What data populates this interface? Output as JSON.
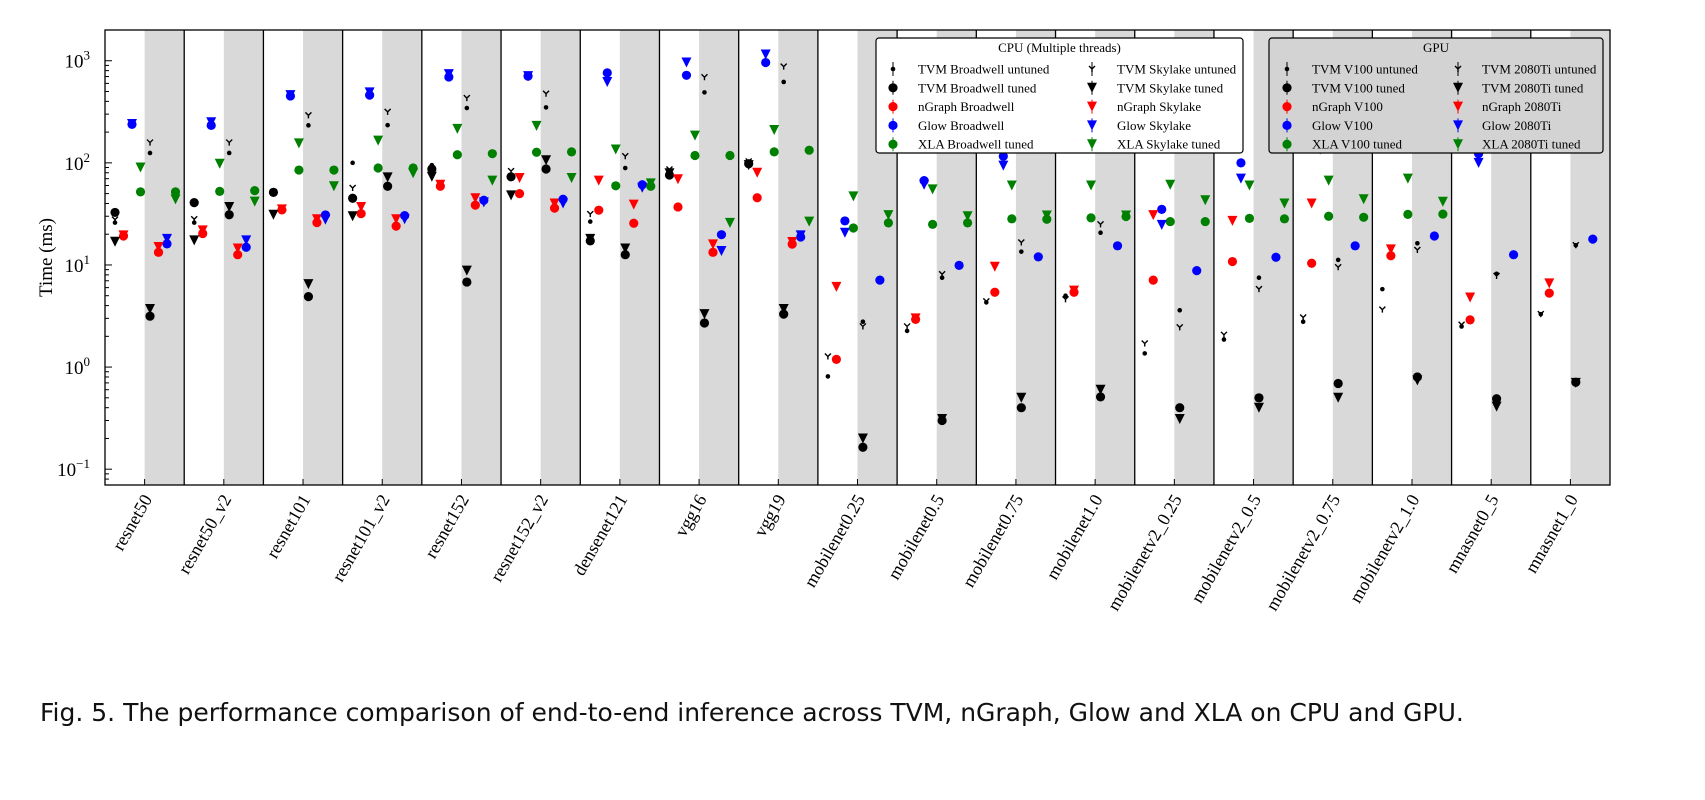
{
  "caption": "Fig. 5.  The performance comparison of end-to-end inference across TVM, nGraph, Glow and XLA on CPU and GPU.",
  "chart_data": {
    "type": "scatter",
    "ylabel": "Time (ms)",
    "yscale": "log",
    "ylim": [
      0.07,
      2000
    ],
    "yticks": [
      {
        "value": 0.1,
        "label_base": "10",
        "label_exp": "−1"
      },
      {
        "value": 1,
        "label_base": "10",
        "label_exp": "0"
      },
      {
        "value": 10,
        "label_base": "10",
        "label_exp": "1"
      },
      {
        "value": 100,
        "label_base": "10",
        "label_exp": "2"
      },
      {
        "value": 1000,
        "label_base": "10",
        "label_exp": "3"
      }
    ],
    "grid": false,
    "background_bands": {
      "cpu_half": "#ffffff",
      "gpu_half": "#d9d9d9"
    },
    "categories": [
      "resnet50",
      "resnet50_v2",
      "resnet101",
      "resnet101_v2",
      "resnet152",
      "resnet152_v2",
      "densenet121",
      "vgg16",
      "vgg19",
      "mobilenet0.25",
      "mobilenet0.5",
      "mobilenet0.75",
      "mobilenet1.0",
      "mobilenetv2_0.25",
      "mobilenetv2_0.5",
      "mobilenetv2_0.75",
      "mobilenetv2_1.0",
      "mnasnet0_5",
      "mnasnet1_0"
    ],
    "legends": [
      {
        "title": "CPU (Multiple threads)",
        "placement": "top-center",
        "background": "#ffffff"
      },
      {
        "title": "GPU",
        "placement": "top-right",
        "background": "#d3d3d3"
      }
    ],
    "series": [
      {
        "name": "TVM Broadwell untuned",
        "device": "cpu",
        "framework": "TVM",
        "marker": "small-dot",
        "color": "#000000",
        "values": [
          26,
          26,
          50,
          100,
          95,
          76,
          26.6,
          80,
          99,
          0.81,
          2.26,
          4.3,
          5.0,
          1.36,
          1.86,
          2.78,
          5.8,
          2.5,
          3.3
        ]
      },
      {
        "name": "TVM Broadwell tuned",
        "device": "cpu",
        "framework": "TVM",
        "marker": "circle",
        "color": "#000000",
        "values": [
          32.7,
          40.8,
          51.4,
          45,
          87,
          73,
          17.2,
          76,
          98,
          null,
          null,
          null,
          null,
          null,
          null,
          null,
          null,
          null,
          null
        ]
      },
      {
        "name": "nGraph Broadwell",
        "device": "cpu",
        "framework": "nGraph",
        "marker": "circle",
        "color": "#ff0000",
        "values": [
          19.2,
          20.3,
          34.6,
          31.8,
          59,
          50,
          34.4,
          37,
          45.5,
          1.19,
          2.93,
          5.4,
          5.4,
          7.1,
          10.8,
          10.4,
          12.3,
          2.9,
          5.3
        ]
      },
      {
        "name": "Glow Broadwell",
        "device": "cpu",
        "framework": "Glow",
        "marker": "circle",
        "color": "#0000ff",
        "values": [
          238,
          233,
          452,
          460,
          693,
          707,
          760,
          720,
          960,
          27,
          67,
          116,
          null,
          35,
          100,
          165,
          null,
          123,
          null
        ]
      },
      {
        "name": "XLA Broadwell tuned",
        "device": "cpu",
        "framework": "XLA",
        "marker": "circle",
        "color": "#008000",
        "values": [
          52,
          52.6,
          85,
          89,
          120,
          127,
          59.6,
          118,
          128,
          23,
          25,
          28.3,
          28.9,
          26.6,
          28.6,
          30,
          31.3,
          null,
          null
        ]
      },
      {
        "name": "TVM Skylake untuned",
        "device": "cpu",
        "framework": "TVM",
        "marker": "small-tri",
        "color": "#000000",
        "values": [
          27.8,
          28,
          52,
          56.7,
          79,
          83,
          31.5,
          86,
          103,
          1.27,
          2.5,
          4.4,
          4.6,
          1.7,
          2.07,
          3.06,
          3.65,
          2.6,
          3.3
        ]
      },
      {
        "name": "TVM Skylake tuned",
        "device": "cpu",
        "framework": "TVM",
        "marker": "triangle",
        "color": "#000000",
        "values": [
          16.9,
          17.4,
          31,
          30,
          73,
          48,
          18,
          79,
          95,
          null,
          null,
          null,
          null,
          null,
          null,
          null,
          null,
          null,
          null
        ]
      },
      {
        "name": "nGraph Skylake",
        "device": "cpu",
        "framework": "nGraph",
        "marker": "triangle",
        "color": "#ff0000",
        "values": [
          19.5,
          21.8,
          35,
          37,
          61,
          71,
          67,
          69,
          80,
          6.1,
          3.0,
          9.6,
          5.6,
          30.8,
          27,
          40,
          14.2,
          4.8,
          6.6
        ]
      },
      {
        "name": "Glow Skylake",
        "device": "cpu",
        "framework": "Glow",
        "marker": "triangle",
        "color": "#0000ff",
        "values": [
          240,
          250,
          460,
          490,
          740,
          707,
          620,
          960,
          1150,
          20.7,
          61,
          94,
          null,
          24.7,
          70,
          135,
          null,
          100,
          null
        ]
      },
      {
        "name": "XLA Skylake tuned",
        "device": "cpu",
        "framework": "XLA",
        "marker": "triangle",
        "color": "#008000",
        "values": [
          90,
          98,
          155,
          165,
          215,
          230,
          135,
          185,
          210,
          47,
          55,
          60,
          60,
          61,
          60,
          67,
          70,
          null,
          null
        ]
      },
      {
        "name": "TVM V100 untuned",
        "device": "gpu",
        "framework": "TVM",
        "marker": "small-dot",
        "color": "#000000",
        "values": [
          125,
          125,
          233,
          234,
          344,
          349,
          89,
          490,
          620,
          2.78,
          7.5,
          13.5,
          20.7,
          3.6,
          7.5,
          11.2,
          16.3,
          8.2,
          15.6
        ]
      },
      {
        "name": "TVM V100 tuned",
        "device": "gpu",
        "framework": "TVM",
        "marker": "circle",
        "color": "#000000",
        "values": [
          3.15,
          31,
          4.9,
          59,
          6.8,
          87,
          12.6,
          2.7,
          3.3,
          0.164,
          0.3,
          0.4,
          0.51,
          0.4,
          0.5,
          0.69,
          0.8,
          0.49,
          0.71
        ]
      },
      {
        "name": "nGraph V100",
        "device": "gpu",
        "framework": "nGraph",
        "marker": "circle",
        "color": "#ff0000",
        "values": [
          13.3,
          12.6,
          26,
          24,
          38.5,
          36,
          25.6,
          13.3,
          16,
          null,
          null,
          null,
          null,
          null,
          null,
          null,
          null,
          null,
          null
        ]
      },
      {
        "name": "Glow V100",
        "device": "gpu",
        "framework": "Glow",
        "marker": "circle",
        "color": "#0000ff",
        "values": [
          16.1,
          14.9,
          30.9,
          30.4,
          43,
          44,
          61,
          19.8,
          18.8,
          7.1,
          9.9,
          12.0,
          15.4,
          8.8,
          11.9,
          15.4,
          19.2,
          12.6,
          17.9
        ]
      },
      {
        "name": "XLA V100 tuned",
        "device": "gpu",
        "framework": "XLA",
        "marker": "circle",
        "color": "#008000",
        "values": [
          52,
          53.5,
          85,
          89,
          123,
          128,
          59,
          118,
          133,
          25.8,
          25.8,
          28,
          29.8,
          26.6,
          28.3,
          29.3,
          31.5,
          null,
          null
        ]
      },
      {
        "name": "TVM 2080Ti untuned",
        "device": "gpu",
        "framework": "TVM",
        "marker": "small-tri",
        "color": "#000000",
        "values": [
          158,
          158,
          292,
          316,
          430,
          475,
          116,
          690,
          875,
          2.5,
          8.1,
          16.6,
          25,
          2.45,
          5.8,
          9.5,
          14,
          7.8,
          15.6
        ]
      },
      {
        "name": "TVM 2080Ti tuned",
        "device": "gpu",
        "framework": "TVM",
        "marker": "triangle",
        "color": "#000000",
        "values": [
          3.7,
          37,
          6.5,
          72,
          8.8,
          106,
          14.5,
          3.3,
          3.7,
          0.2,
          0.31,
          0.5,
          0.6,
          0.31,
          0.4,
          0.5,
          0.74,
          0.41,
          0.7
        ]
      },
      {
        "name": "nGraph 2080Ti",
        "device": "gpu",
        "framework": "nGraph",
        "marker": "triangle",
        "color": "#ff0000",
        "values": [
          15,
          14.5,
          28,
          28,
          45,
          40,
          39,
          15.9,
          16.8,
          null,
          null,
          null,
          null,
          null,
          null,
          null,
          null,
          null,
          null
        ]
      },
      {
        "name": "Glow 2080Ti",
        "device": "gpu",
        "framework": "Glow",
        "marker": "triangle",
        "color": "#0000ff",
        "values": [
          18,
          17.4,
          27.8,
          28,
          41,
          40,
          57,
          13.7,
          19.5,
          null,
          null,
          null,
          null,
          null,
          null,
          null,
          null,
          null,
          null
        ]
      },
      {
        "name": "XLA 2080Ti tuned",
        "device": "gpu",
        "framework": "XLA",
        "marker": "triangle",
        "color": "#008000",
        "values": [
          43.9,
          41.7,
          59,
          79,
          67,
          71,
          63,
          25.8,
          26.6,
          30.8,
          30,
          30.5,
          30.5,
          43,
          40,
          44,
          41.6,
          null,
          null
        ]
      }
    ]
  }
}
